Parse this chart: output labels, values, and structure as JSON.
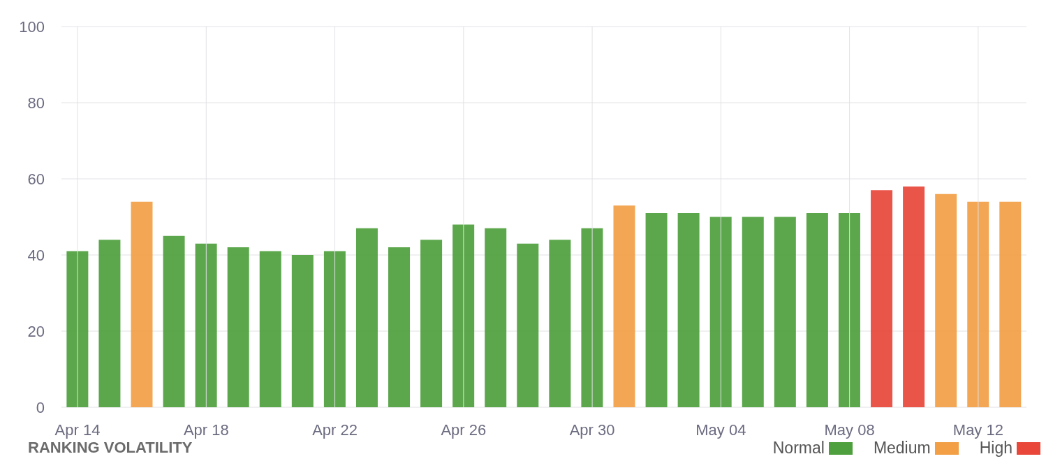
{
  "chart_data": {
    "type": "bar",
    "title": "RANKING VOLATILITY",
    "categories": [
      "Apr 14",
      null,
      null,
      null,
      "Apr 18",
      null,
      null,
      null,
      "Apr 22",
      null,
      null,
      null,
      "Apr 26",
      null,
      null,
      null,
      "Apr 30",
      null,
      null,
      null,
      "May 04",
      null,
      null,
      null,
      "May 08",
      null,
      null,
      null,
      "May 12",
      null
    ],
    "series": [
      {
        "name": "Normal",
        "color": "#4e9f3d",
        "values": [
          41,
          44,
          null,
          45,
          43,
          42,
          41,
          40,
          41,
          47,
          42,
          44,
          48,
          47,
          43,
          44,
          47,
          null,
          51,
          51,
          50,
          50,
          50,
          51,
          51,
          null,
          null,
          null,
          null,
          null
        ]
      },
      {
        "name": "Medium",
        "color": "#f29f46",
        "values": [
          null,
          null,
          54,
          null,
          null,
          null,
          null,
          null,
          null,
          null,
          null,
          null,
          null,
          null,
          null,
          null,
          null,
          53,
          null,
          null,
          null,
          null,
          null,
          null,
          null,
          null,
          null,
          56,
          54,
          54
        ]
      },
      {
        "name": "High",
        "color": "#e8473a",
        "values": [
          null,
          null,
          null,
          null,
          null,
          null,
          null,
          null,
          null,
          null,
          null,
          null,
          null,
          null,
          null,
          null,
          null,
          null,
          null,
          null,
          null,
          null,
          null,
          null,
          null,
          57,
          58,
          null,
          null,
          null
        ]
      }
    ],
    "stacked": true,
    "ylim": [
      0,
      100
    ],
    "yticks": [
      0,
      20,
      40,
      60,
      80,
      100
    ],
    "grid": true,
    "legend": "bottom right"
  }
}
